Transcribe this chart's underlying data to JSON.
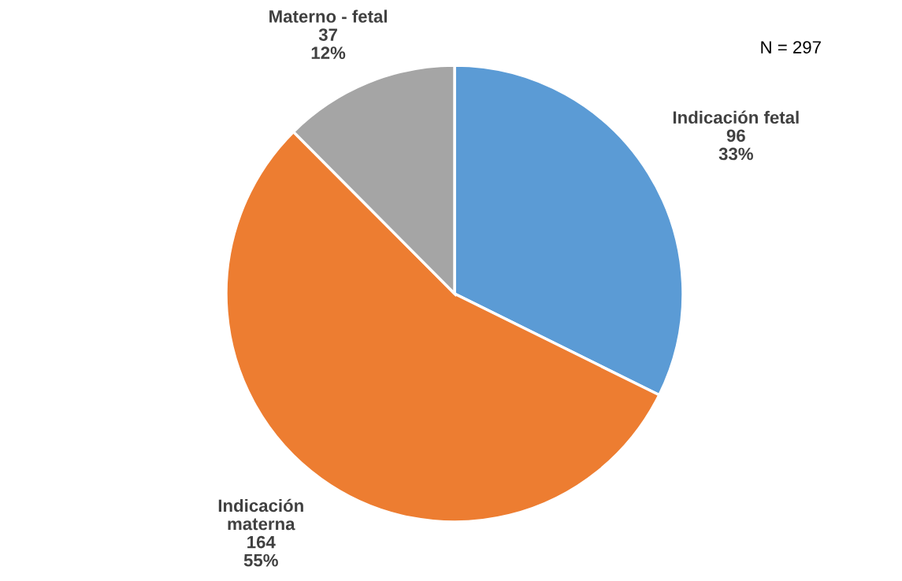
{
  "chart_data": {
    "type": "pie",
    "categories": [
      "Indicación fetal",
      "Indicación materna",
      "Materno - fetal"
    ],
    "values": [
      96,
      164,
      37
    ],
    "colors": [
      "#5b9bd5",
      "#ed7d31",
      "#a5a5a5"
    ],
    "value_labels": [
      "96\n33%",
      "164\n55%",
      "37\n12%"
    ],
    "annotations": [
      "N = 297"
    ]
  }
}
